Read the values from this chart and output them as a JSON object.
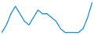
{
  "x": [
    0,
    1,
    2,
    3,
    4,
    5,
    6,
    7,
    8,
    9,
    10,
    11,
    12,
    13,
    14,
    15,
    16,
    17,
    18,
    19,
    20
  ],
  "y": [
    3,
    5,
    8,
    10,
    8,
    6,
    5,
    7,
    9,
    8,
    8,
    7,
    6,
    4,
    3,
    3,
    3,
    3,
    4,
    7,
    11
  ],
  "line_color": "#3a9fd8",
  "linewidth": 1.1,
  "background_color": "#ffffff"
}
